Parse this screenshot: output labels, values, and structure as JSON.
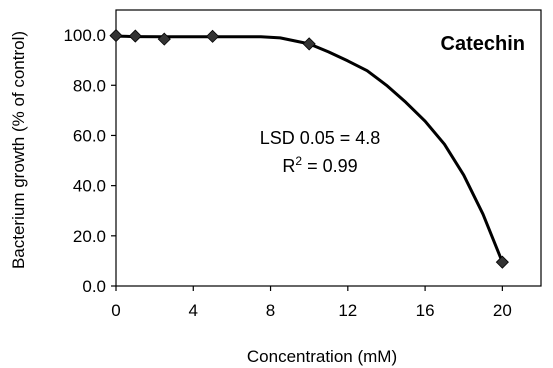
{
  "chart_data": {
    "type": "line",
    "title": "Catechin",
    "xlabel": "Concentration (mM)",
    "ylabel": "Bacterium growth (% of control)",
    "xlim": [
      0,
      22
    ],
    "ylim": [
      0,
      110
    ],
    "xticks": [
      0,
      4,
      8,
      12,
      16,
      20
    ],
    "xtick_labels": [
      "0",
      "4",
      "8",
      "12",
      "16",
      "20"
    ],
    "yticks": [
      0,
      20,
      40,
      60,
      80,
      100
    ],
    "ytick_labels": [
      "0.0",
      "20.0",
      "40.0",
      "60.0",
      "80.0",
      "100.0"
    ],
    "series": [
      {
        "markers": {
          "x": [
            0,
            1,
            2.5,
            5,
            10,
            20
          ],
          "y": [
            99.8,
            99.6,
            98.4,
            99.5,
            96.5,
            9.5
          ]
        },
        "curve": {
          "x": [
            0,
            1,
            2.5,
            5,
            7.5,
            8.5,
            10,
            11,
            12,
            13,
            14,
            15,
            16,
            17,
            18,
            19,
            20
          ],
          "y": [
            99.6,
            99.4,
            99.3,
            99.3,
            99.3,
            98.9,
            96.5,
            93.3,
            89.7,
            85.8,
            80,
            73.2,
            65.7,
            56.5,
            44.2,
            28.6,
            9.5
          ]
        }
      }
    ],
    "annotations": {
      "lsd": "LSD 0.05 = 4.8",
      "r2_prefix": "R",
      "r2_sup": "2",
      "r2_suffix": " = 0.99"
    },
    "grid": false,
    "legend": "none"
  }
}
